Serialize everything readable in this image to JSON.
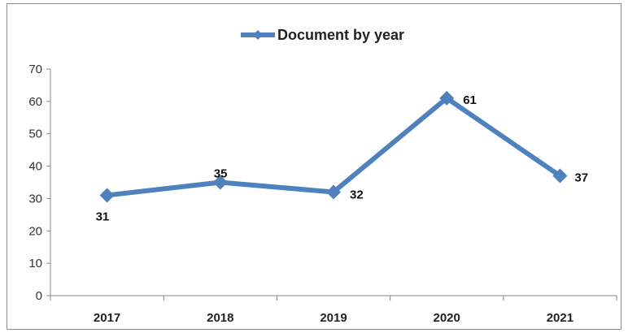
{
  "chart_data": {
    "type": "line",
    "title": "",
    "xlabel": "",
    "ylabel": "",
    "categories": [
      "2017",
      "2018",
      "2019",
      "2020",
      "2021"
    ],
    "series": [
      {
        "name": "Document by year",
        "values": [
          31,
          35,
          32,
          61,
          37
        ],
        "color": "#4f81bd",
        "marker": "diamond"
      }
    ],
    "data_labels": [
      "31",
      "35",
      "32",
      "61",
      "37"
    ],
    "y_ticks": [
      "0",
      "10",
      "20",
      "30",
      "40",
      "50",
      "60",
      "70"
    ],
    "ylim": [
      0,
      70
    ],
    "grid": false,
    "legend": "top-center"
  }
}
